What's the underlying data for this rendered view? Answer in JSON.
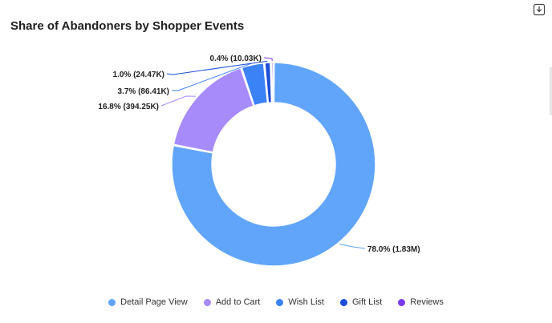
{
  "header": {
    "title": "Share of Abandoners by Shopper Events",
    "download_icon": "download-icon"
  },
  "chart_data": {
    "type": "pie",
    "donut": true,
    "title": "Share of Abandoners by Shopper Events",
    "categories": [
      "Detail Page View",
      "Add to Cart",
      "Wish List",
      "Gift List",
      "Reviews"
    ],
    "values": [
      1830000,
      394250,
      86410,
      24470,
      10030
    ],
    "labels": [
      "78.0% (1.83M)",
      "16.8% (394.25K)",
      "3.7% (86.41K)",
      "1.0% (24.47K)",
      "0.4% (10.03K)"
    ],
    "colors": [
      "#60a5fa",
      "#a78bfa",
      "#3b82f6",
      "#1d4ed8",
      "#7c3aed"
    ],
    "legend_position": "bottom"
  }
}
